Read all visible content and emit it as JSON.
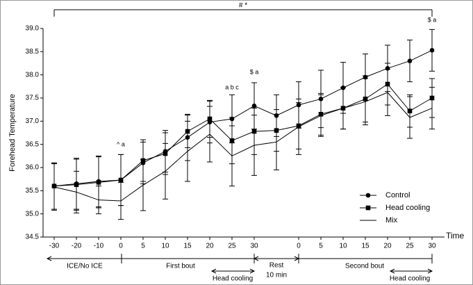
{
  "chart_data": {
    "type": "line",
    "title": "# *",
    "y_label": "Forehead Temperature",
    "x_label": "Time",
    "categories": [
      "-30",
      "-20",
      "-10",
      "0",
      "5",
      "10",
      "15",
      "20",
      "25",
      "30",
      null,
      "0",
      "5",
      "10",
      "15",
      "20",
      "25",
      "30"
    ],
    "ylim": [
      34.5,
      39.0
    ],
    "yticks": [
      34.5,
      {
        "value": 35.0,
        "label": "35.0"
      },
      35.5,
      {
        "value": 36.0,
        "label": "36.0"
      },
      36.5,
      {
        "value": 37.0,
        "label": "37.0"
      },
      37.5,
      {
        "value": 38.0,
        "label": "38.0"
      },
      38.5,
      {
        "value": 39.0,
        "label": "39.0"
      }
    ],
    "series": [
      {
        "name": "Control",
        "color": "#000000",
        "marker": "circle",
        "values": [
          35.6,
          35.65,
          35.7,
          35.73,
          36.1,
          36.35,
          36.65,
          36.98,
          37.05,
          37.33,
          37.12,
          37.35,
          37.48,
          37.72,
          37.95,
          38.14,
          38.3,
          38.53
        ],
        "errors": [
          0.5,
          0.55,
          0.55,
          0.55,
          0.45,
          0.45,
          0.5,
          0.45,
          0.52,
          0.5,
          0.45,
          0.5,
          0.62,
          0.55,
          0.5,
          0.5,
          0.45,
          0.45
        ]
      },
      {
        "name": "Head cooling",
        "color": "#000000",
        "marker": "square",
        "values": [
          35.6,
          35.63,
          35.68,
          35.73,
          36.15,
          36.3,
          36.78,
          37.05,
          36.58,
          36.78,
          36.8,
          36.9,
          37.15,
          37.28,
          37.48,
          37.8,
          37.22,
          37.5
        ],
        "errors": [
          0.5,
          0.55,
          0.55,
          0.55,
          0.45,
          0.45,
          0.35,
          0.4,
          0.5,
          0.5,
          0.45,
          0.5,
          0.45,
          0.45,
          0.5,
          0.45,
          0.35,
          0.42
        ]
      },
      {
        "name": "Mix",
        "color": "#000000",
        "marker": "triangle",
        "values": [
          35.58,
          35.47,
          35.3,
          35.28,
          35.62,
          35.92,
          36.35,
          36.72,
          36.25,
          36.48,
          36.55,
          36.88,
          37.12,
          37.28,
          37.42,
          37.62,
          37.08,
          37.28
        ],
        "errors": [
          0.5,
          0.45,
          0.3,
          0.4,
          0.55,
          0.6,
          0.65,
          0.6,
          0.65,
          0.65,
          0.6,
          0.6,
          0.45,
          0.45,
          0.5,
          0.5,
          0.45,
          0.45
        ]
      }
    ],
    "annotations": [
      "^ a",
      "a b c",
      "$ a",
      "$ a"
    ],
    "phases": [
      "ICE/No ICE",
      "First bout",
      "Head cooling",
      "Rest",
      "10 min",
      "Second bout",
      "Head cooling"
    ],
    "legend": "lower right"
  }
}
